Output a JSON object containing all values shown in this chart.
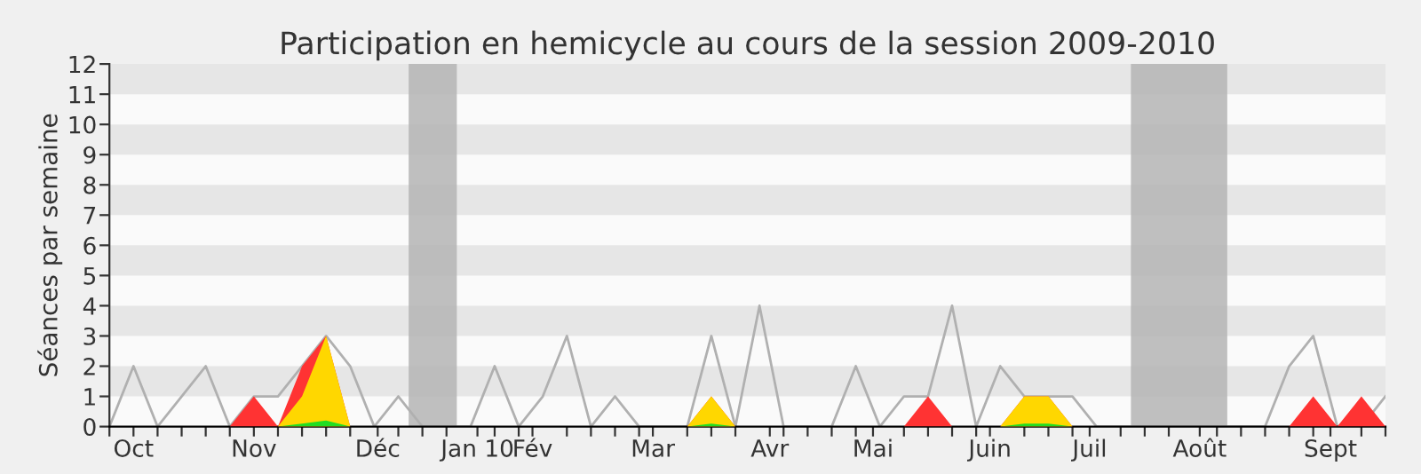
{
  "chart_data": {
    "type": "area",
    "title": "Participation en hemicycle au cours de la session 2009-2010",
    "ylabel": "Séances par semaine",
    "x": [
      "2009-09-28",
      "2009-10-05",
      "2009-10-12",
      "2009-10-19",
      "2009-10-26",
      "2009-11-02",
      "2009-11-09",
      "2009-11-16",
      "2009-11-23",
      "2009-11-30",
      "2009-12-07",
      "2009-12-14",
      "2009-12-21",
      "2009-12-28",
      "2010-01-04",
      "2010-01-11",
      "2010-01-18",
      "2010-01-25",
      "2010-02-01",
      "2010-02-08",
      "2010-02-15",
      "2010-02-22",
      "2010-03-01",
      "2010-03-08",
      "2010-03-15",
      "2010-03-22",
      "2010-03-29",
      "2010-04-05",
      "2010-04-12",
      "2010-04-19",
      "2010-04-26",
      "2010-05-03",
      "2010-05-10",
      "2010-05-17",
      "2010-05-24",
      "2010-05-31",
      "2010-06-07",
      "2010-06-14",
      "2010-06-21",
      "2010-06-28",
      "2010-07-05",
      "2010-07-12",
      "2010-07-19",
      "2010-07-26",
      "2010-08-02",
      "2010-08-09",
      "2010-08-16",
      "2010-08-23",
      "2010-08-30",
      "2010-09-06",
      "2010-09-13",
      "2010-09-20",
      "2010-09-27",
      "2010-10-04"
    ],
    "series": [
      {
        "color": "#ff3333",
        "x": [
          "2009-11-02",
          "2009-11-09",
          "2009-11-16",
          "2009-11-23",
          "2009-11-30",
          "2009-12-07",
          "2009-12-14",
          "2009-12-21",
          "2009-12-28",
          "2010-01-04",
          "2010-01-11",
          "2010-01-18",
          "2010-01-25",
          "2010-02-01",
          "2010-02-08",
          "2010-02-15",
          "2010-02-22",
          "2010-03-01",
          "2010-03-08",
          "2010-03-15",
          "2010-03-22",
          "2010-03-29",
          "2010-04-05",
          "2010-04-12",
          "2010-04-19",
          "2010-04-26",
          "2010-05-03",
          "2010-05-10",
          "2010-05-17",
          "2010-05-24",
          "2010-05-31",
          "2010-06-07",
          "2010-06-14",
          "2010-06-21",
          "2010-06-28",
          "2010-07-05",
          "2010-07-12",
          "2010-07-19",
          "2010-07-26",
          "2010-08-02",
          "2010-08-09",
          "2010-08-16",
          "2010-08-23",
          "2010-08-30",
          "2010-09-06",
          "2010-09-13",
          "2010-09-20",
          "2010-09-27",
          "2010-10-04"
        ],
        "values": [
          0,
          1,
          0,
          2,
          3,
          0,
          0,
          0,
          0,
          0,
          0,
          0,
          0,
          0,
          0,
          0,
          0,
          0,
          0,
          0,
          1,
          0,
          0,
          0,
          0,
          0,
          0,
          0,
          0,
          1,
          0,
          0,
          0,
          1,
          1,
          0,
          0,
          0,
          0,
          0,
          0,
          0,
          0,
          0,
          0,
          1,
          0,
          1,
          0
        ]
      },
      {
        "color": "#ffd700",
        "x": [
          "2009-11-16",
          "2009-11-23",
          "2009-11-30",
          "2009-12-07",
          "2009-12-14",
          "2009-12-21",
          "2009-12-28",
          "2010-01-04",
          "2010-01-11",
          "2010-01-18",
          "2010-01-25",
          "2010-02-01",
          "2010-02-08",
          "2010-02-15",
          "2010-02-22",
          "2010-03-01",
          "2010-03-08",
          "2010-03-15",
          "2010-03-22",
          "2010-03-29",
          "2010-04-05",
          "2010-04-12",
          "2010-04-19",
          "2010-04-26",
          "2010-05-03",
          "2010-05-10",
          "2010-05-17",
          "2010-05-24",
          "2010-05-31",
          "2010-06-07",
          "2010-06-14",
          "2010-06-21",
          "2010-06-28",
          "2010-07-05"
        ],
        "values": [
          0,
          1,
          3,
          0,
          0,
          0,
          0,
          0,
          0,
          0,
          0,
          0,
          0,
          0,
          0,
          0,
          0,
          0,
          1,
          0,
          0,
          0,
          0,
          0,
          0,
          0,
          0,
          0,
          0,
          0,
          0,
          1,
          1,
          0
        ]
      },
      {
        "color": "#22dd22",
        "x": [
          "2009-11-16",
          "2009-11-23",
          "2009-11-30",
          "2009-12-07",
          "2009-12-14",
          "2009-12-21",
          "2009-12-28",
          "2010-01-04",
          "2010-01-11",
          "2010-01-18",
          "2010-01-25",
          "2010-02-01",
          "2010-02-08",
          "2010-02-15",
          "2010-02-22",
          "2010-03-01",
          "2010-03-08",
          "2010-03-15",
          "2010-03-22",
          "2010-03-29",
          "2010-04-05",
          "2010-04-12",
          "2010-04-19",
          "2010-04-26",
          "2010-05-03",
          "2010-05-10",
          "2010-05-17",
          "2010-05-24",
          "2010-05-31",
          "2010-06-07",
          "2010-06-14",
          "2010-06-21",
          "2010-06-28",
          "2010-07-05"
        ],
        "values": [
          0,
          0.1,
          0.2,
          0,
          0,
          0,
          0,
          0,
          0,
          0,
          0,
          0,
          0,
          0,
          0,
          0,
          0,
          0,
          0.1,
          0,
          0,
          0,
          0,
          0,
          0,
          0,
          0,
          0,
          0,
          0,
          0,
          0.1,
          0.1,
          0
        ]
      },
      {
        "type": "line",
        "color": "#b0b0b0",
        "values": [
          0,
          2,
          0,
          1,
          2,
          0,
          1,
          1,
          2,
          3,
          2,
          0,
          1,
          0,
          0,
          0,
          2,
          0,
          1,
          3,
          0,
          1,
          0,
          0,
          0,
          3,
          0,
          4,
          0,
          0,
          0,
          2,
          0,
          1,
          1,
          4,
          0,
          2,
          1,
          1,
          1,
          0,
          0,
          0,
          0,
          0,
          0,
          0,
          0,
          2,
          3,
          0,
          0,
          1
        ]
      }
    ],
    "xlim": [
      "2009-09-28",
      "2010-10-04"
    ],
    "xticks": [
      {
        "value": "2009-10-05",
        "label": "Oct"
      },
      {
        "value": "2009-11-09",
        "label": "Nov"
      },
      {
        "value": "2009-12-15",
        "label": "Déc"
      },
      {
        "value": "2010-01-13",
        "label": "Jan 10"
      },
      {
        "value": "2010-01-29",
        "label": "Fév"
      },
      {
        "value": "2010-03-05",
        "label": "Mar"
      },
      {
        "value": "2010-04-08",
        "label": "Avr"
      },
      {
        "value": "2010-05-08",
        "label": "Mai"
      },
      {
        "value": "2010-06-11",
        "label": "Juin"
      },
      {
        "value": "2010-07-10",
        "label": "Juil"
      },
      {
        "value": "2010-08-11",
        "label": "Août"
      },
      {
        "value": "2010-09-18",
        "label": "Sept"
      },
      {
        "value": "2009-09-28",
        "label": null
      },
      {
        "value": "2009-10-12",
        "label": null
      },
      {
        "value": "2009-10-19",
        "label": null
      },
      {
        "value": "2009-10-26",
        "label": null
      },
      {
        "value": "2009-11-02",
        "label": null
      },
      {
        "value": "2009-11-16",
        "label": null
      },
      {
        "value": "2009-11-23",
        "label": null
      },
      {
        "value": "2009-11-30",
        "label": null
      },
      {
        "value": "2009-12-07",
        "label": null
      },
      {
        "value": "2009-12-21",
        "label": null
      },
      {
        "value": "2009-12-28",
        "label": null
      },
      {
        "value": "2010-01-04",
        "label": null
      },
      {
        "value": "2010-01-18",
        "label": null
      },
      {
        "value": "2010-01-25",
        "label": null
      },
      {
        "value": "2010-02-08",
        "label": null
      },
      {
        "value": "2010-02-15",
        "label": null
      },
      {
        "value": "2010-02-22",
        "label": null
      },
      {
        "value": "2010-03-01",
        "label": null
      },
      {
        "value": "2010-03-15",
        "label": null
      },
      {
        "value": "2010-03-22",
        "label": null
      },
      {
        "value": "2010-03-29",
        "label": null
      },
      {
        "value": "2010-04-12",
        "label": null
      },
      {
        "value": "2010-04-19",
        "label": null
      },
      {
        "value": "2010-04-26",
        "label": null
      },
      {
        "value": "2010-05-03",
        "label": null
      },
      {
        "value": "2010-05-17",
        "label": null
      },
      {
        "value": "2010-05-24",
        "label": null
      },
      {
        "value": "2010-05-31",
        "label": null
      },
      {
        "value": "2010-06-07",
        "label": null
      },
      {
        "value": "2010-06-21",
        "label": null
      },
      {
        "value": "2010-06-28",
        "label": null
      },
      {
        "value": "2010-07-05",
        "label": null
      },
      {
        "value": "2010-07-19",
        "label": null
      },
      {
        "value": "2010-07-26",
        "label": null
      },
      {
        "value": "2010-08-02",
        "label": null
      },
      {
        "value": "2010-08-16",
        "label": null
      },
      {
        "value": "2010-08-23",
        "label": null
      },
      {
        "value": "2010-08-30",
        "label": null
      },
      {
        "value": "2010-09-06",
        "label": null
      },
      {
        "value": "2010-09-13",
        "label": null
      },
      {
        "value": "2010-09-27",
        "label": null
      },
      {
        "value": "2010-10-04",
        "label": null
      }
    ],
    "ylim": [
      0,
      12
    ],
    "yticks": [
      0,
      1,
      2,
      3,
      4,
      5,
      6,
      7,
      8,
      9,
      10,
      11,
      12
    ],
    "bands": [
      {
        "axis": "y",
        "from": 1,
        "to": 2,
        "color": "#e6e6e6"
      },
      {
        "axis": "y",
        "from": 3,
        "to": 4,
        "color": "#e6e6e6"
      },
      {
        "axis": "y",
        "from": 5,
        "to": 6,
        "color": "#e6e6e6"
      },
      {
        "axis": "y",
        "from": 7,
        "to": 8,
        "color": "#e6e6e6"
      },
      {
        "axis": "y",
        "from": 9,
        "to": 10,
        "color": "#e6e6e6"
      },
      {
        "axis": "y",
        "from": 11,
        "to": 12,
        "color": "#e6e6e6"
      },
      {
        "axis": "x",
        "from": "2009-12-24",
        "to": "2010-01-07",
        "color": "#b4b4b4"
      },
      {
        "axis": "x",
        "from": "2010-07-22",
        "to": "2010-08-19",
        "color": "#b4b4b4"
      }
    ],
    "grid": false,
    "legend": false
  }
}
